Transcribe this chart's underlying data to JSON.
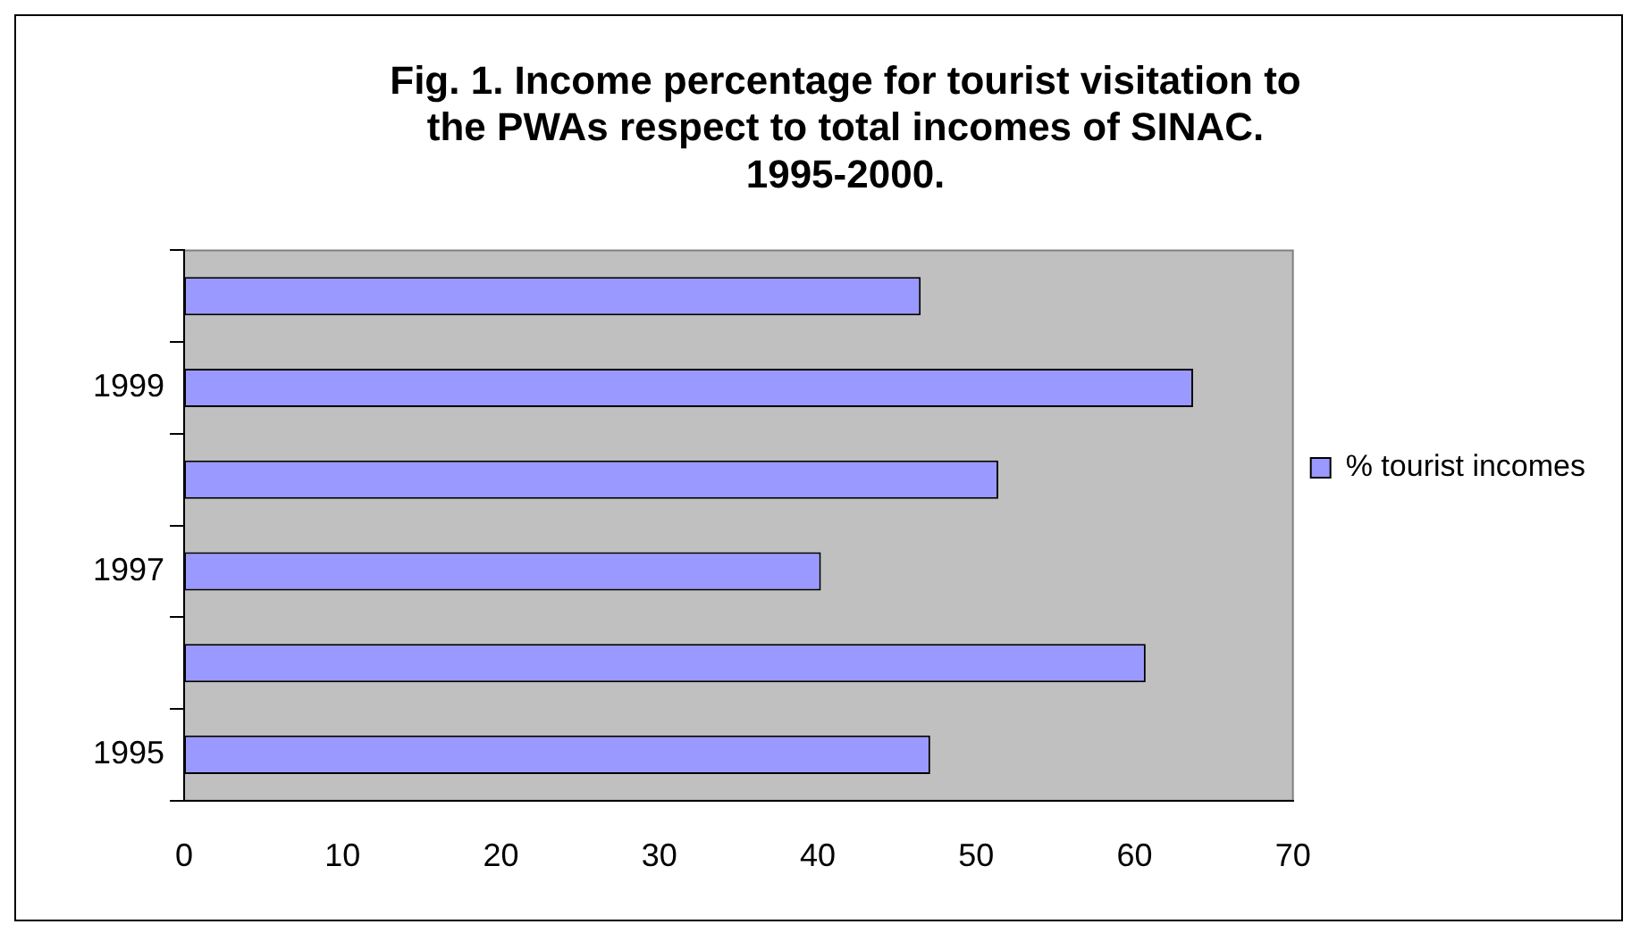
{
  "chart_data": {
    "type": "bar",
    "orientation": "horizontal",
    "title": "Fig. 1. Income percentage for tourist visitation to the PWAs respect to total incomes of SINAC. 1995-2000.",
    "categories": [
      null,
      "1999",
      null,
      "1997",
      null,
      "1995"
    ],
    "series": [
      {
        "name": "% tourist incomes",
        "color": "#9999ff",
        "values": [
          46.5,
          63.7,
          51.4,
          40.2,
          60.7,
          47.1
        ]
      }
    ],
    "xlim": [
      0,
      70
    ],
    "xticks": [
      0,
      10,
      20,
      30,
      40,
      50,
      60,
      70
    ],
    "grid": false,
    "legend": "right"
  }
}
